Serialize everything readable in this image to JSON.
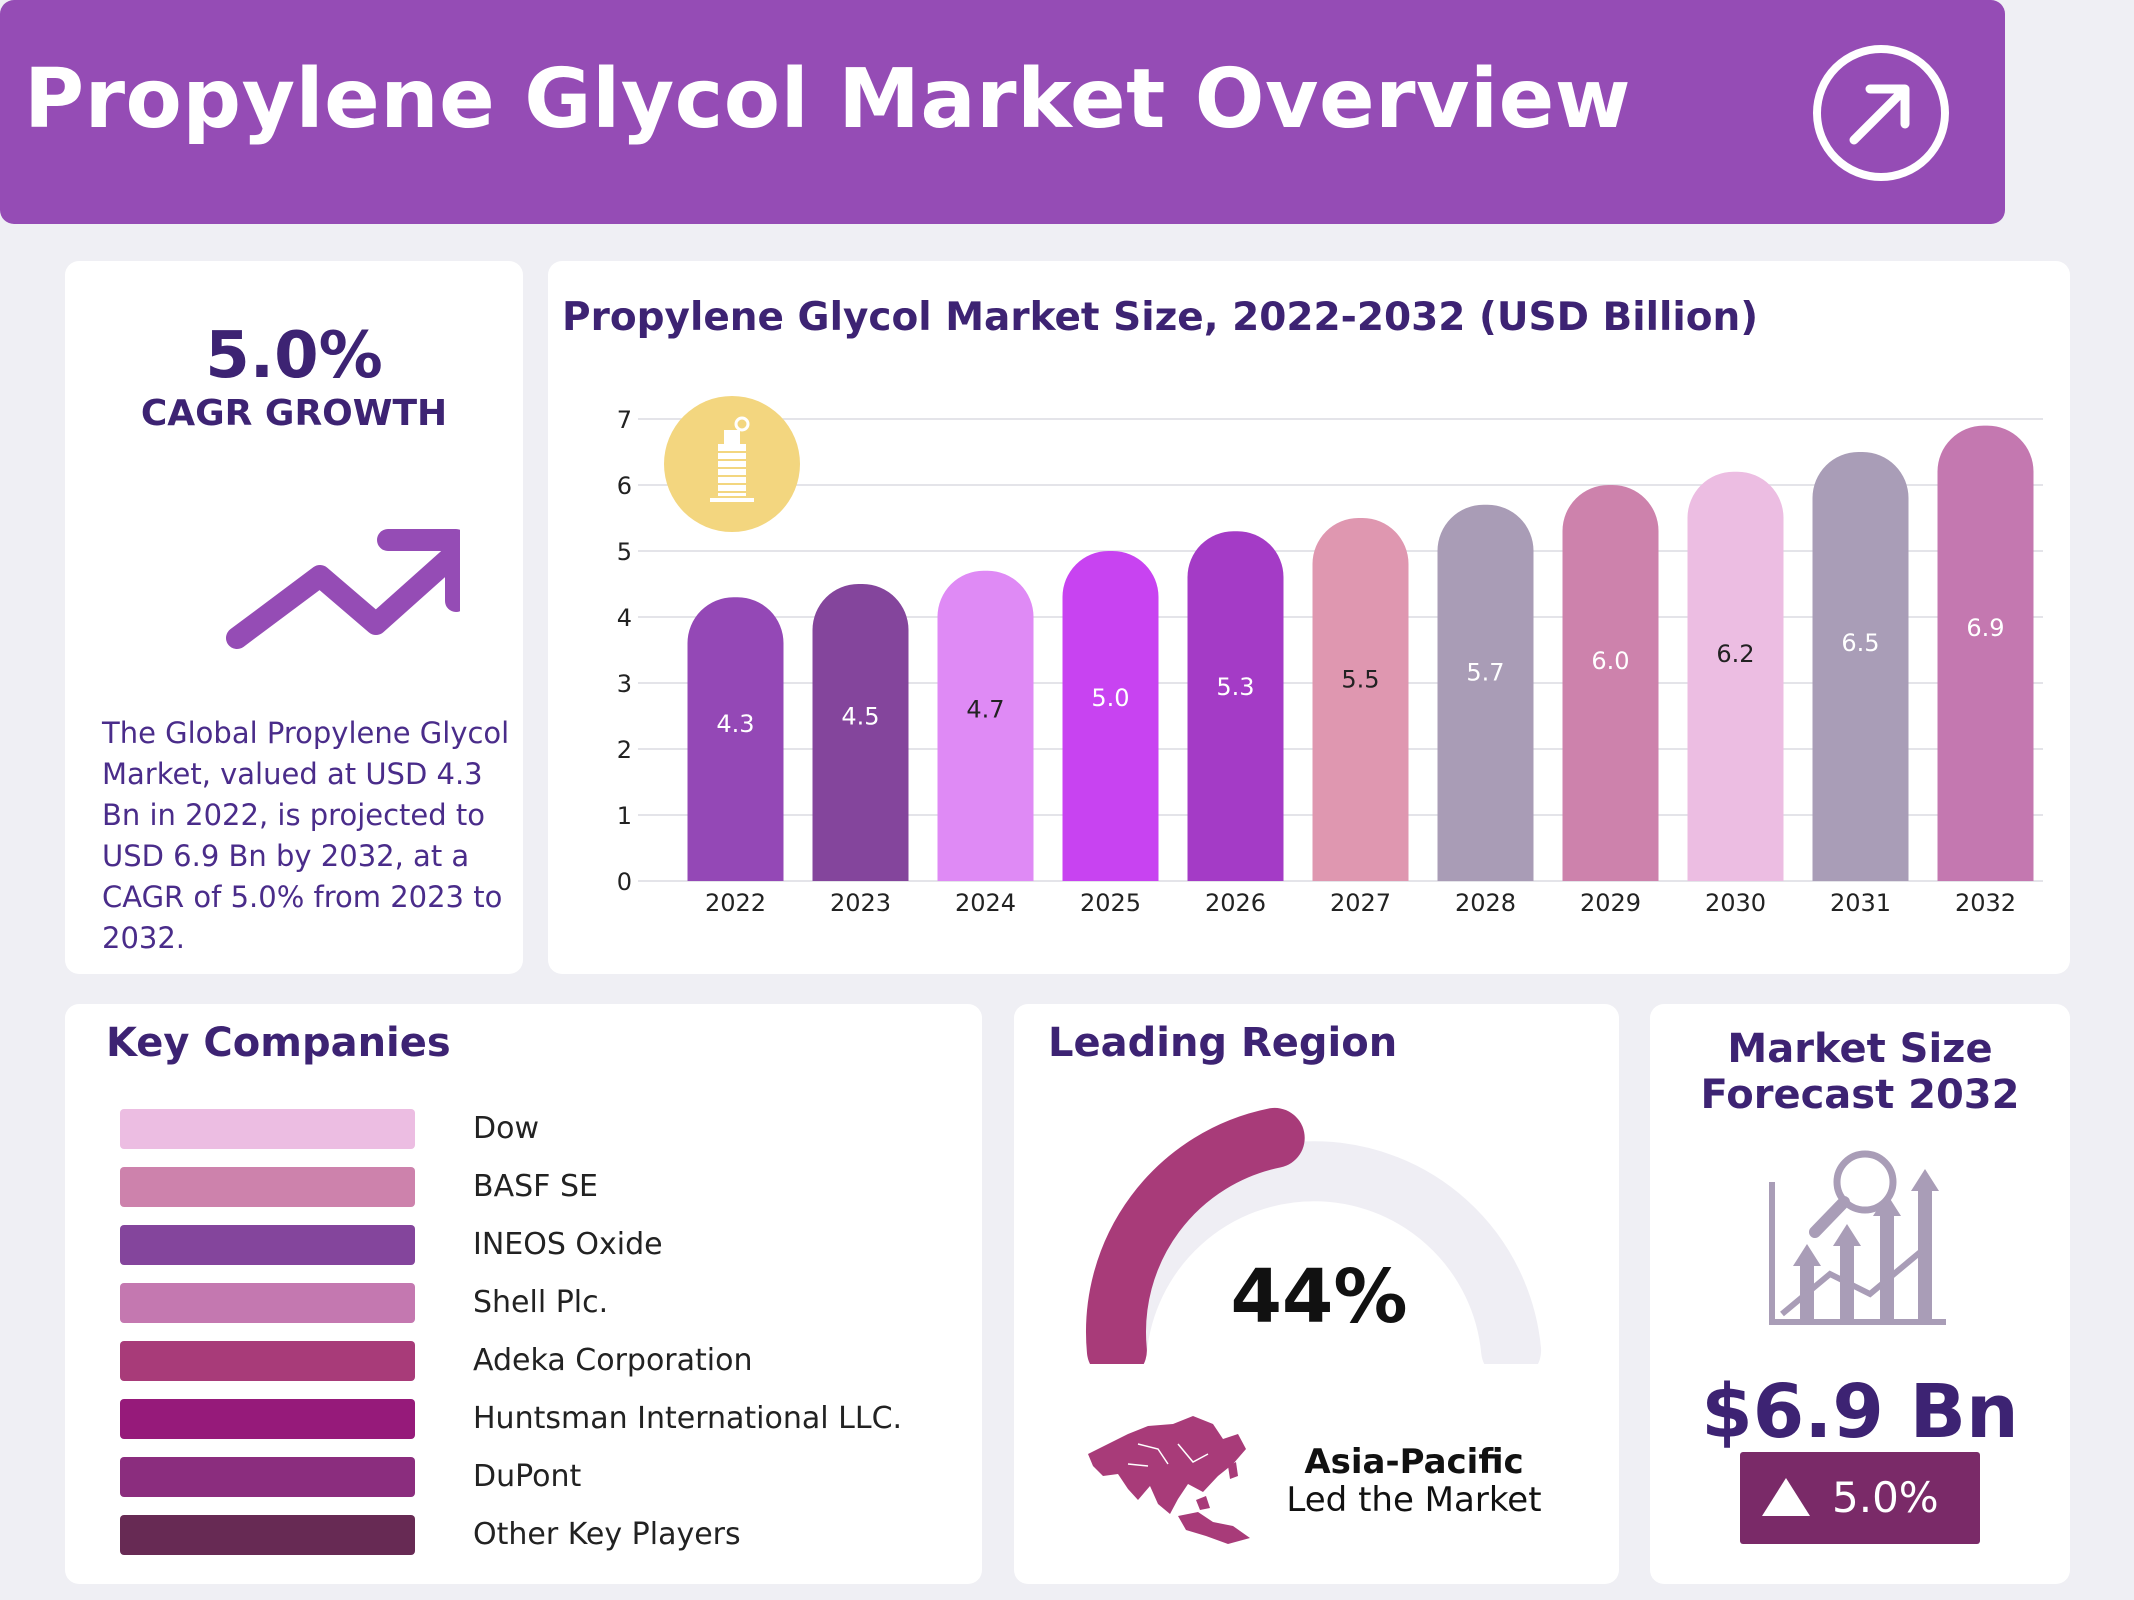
{
  "header": {
    "title": "Propylene Glycol Market Overview",
    "icon": "arrow-up-right-icon"
  },
  "cagr": {
    "value": "5.0%",
    "label": "CAGR GROWTH",
    "icon": "trend-up-arrow-icon",
    "description": "The Global Propylene Glycol Market, valued at USD 4.3 Bn in 2022, is projected to USD 6.9 Bn by 2032, at a CAGR of 5.0% from 2023 to 2032."
  },
  "chart_data": {
    "type": "bar",
    "title": "Propylene Glycol Market Size, 2022-2032 (USD Billion)",
    "categories": [
      "2022",
      "2023",
      "2024",
      "2025",
      "2026",
      "2027",
      "2028",
      "2029",
      "2030",
      "2031",
      "2032"
    ],
    "values": [
      4.3,
      4.5,
      4.7,
      5.0,
      5.3,
      5.5,
      5.7,
      6.0,
      6.2,
      6.5,
      6.9
    ],
    "labels": [
      "4.3",
      "4.5",
      "4.7",
      "5.0",
      "5.3",
      "5.5",
      "5.7",
      "6.0",
      "6.2",
      "6.5",
      "6.9"
    ],
    "colors": [
      "#9448b6",
      "#84459c",
      "#df8af5",
      "#c843f1",
      "#a43bc6",
      "#df97b0",
      "#a99cb6",
      "#cd82ac",
      "#ecbde2",
      "#a99db7",
      "#c478b0"
    ],
    "label_colors": [
      "#ffffff",
      "#ffffff",
      "#222222",
      "#ffffff",
      "#ffffff",
      "#222222",
      "#ffffff",
      "#ffffff",
      "#222222",
      "#ffffff",
      "#ffffff"
    ],
    "yticks": [
      "0",
      "1",
      "2",
      "3",
      "4",
      "5",
      "6",
      "7"
    ],
    "ylim": [
      0,
      7
    ],
    "xlabel": "",
    "ylabel": "",
    "grid": true,
    "icon": "propylene-glycol-bottle-icon"
  },
  "companies": {
    "title": "Key Companies",
    "items": [
      {
        "name": "Dow",
        "color": "#ecbde2"
      },
      {
        "name": "BASF SE",
        "color": "#cd82ac"
      },
      {
        "name": "INEOS Oxide",
        "color": "#84459c"
      },
      {
        "name": "Shell Plc.",
        "color": "#c478b0"
      },
      {
        "name": "Adeka Corporation",
        "color": "#a83b79"
      },
      {
        "name": "Huntsman International LLC.",
        "color": "#961a7a"
      },
      {
        "name": "DuPont",
        "color": "#8b2d7e"
      },
      {
        "name": "Other Key Players",
        "color": "#672a54"
      }
    ]
  },
  "region": {
    "title": "Leading Region",
    "share": 44,
    "percent_label": "44%",
    "name": "Asia-Pacific",
    "subtitle": "Led the Market",
    "accent": "#a83b79",
    "track": "#efeef4"
  },
  "forecast": {
    "title_line1": "Market Size",
    "title_line2": "Forecast 2032",
    "value": "$6.9 Bn",
    "growth": "5.0%",
    "icon": "magnifier-growth-chart-icon"
  }
}
